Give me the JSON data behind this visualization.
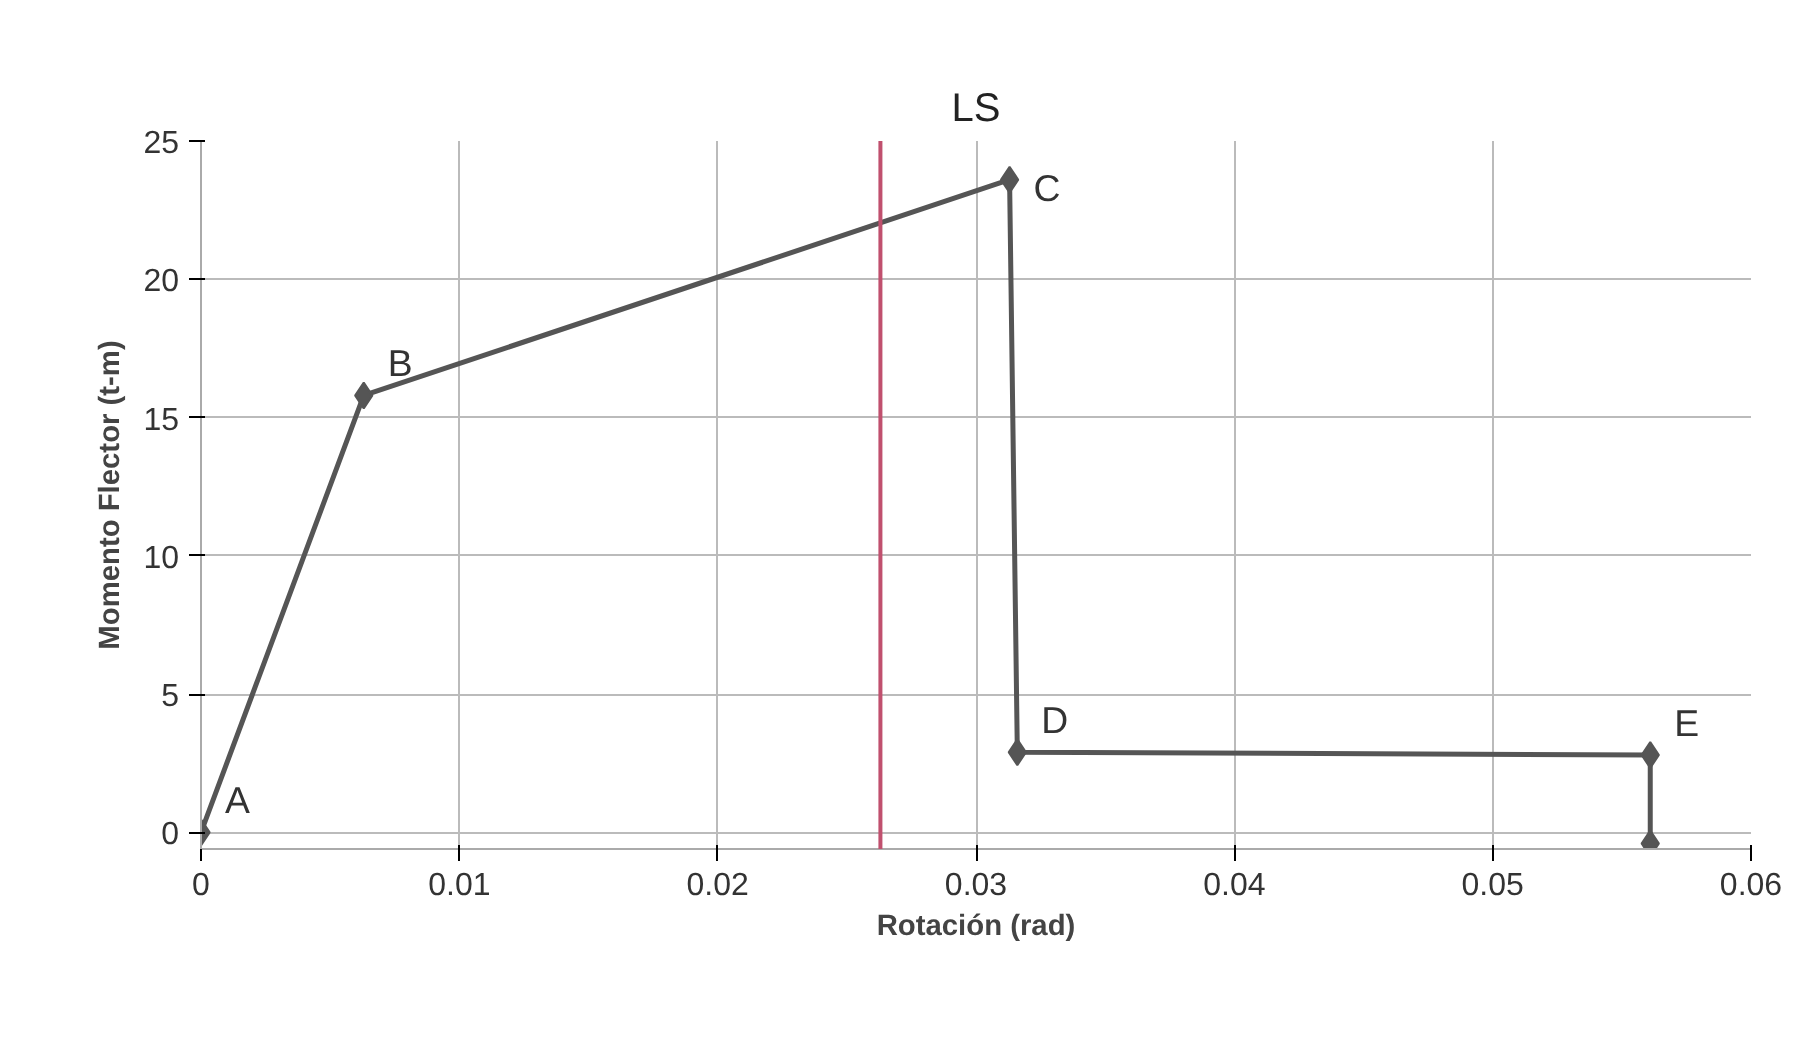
{
  "chart_data": {
    "type": "line",
    "title": "LS",
    "xlabel": "Rotación (rad)",
    "ylabel": "Momento Flector (t-m)",
    "x": [
      0,
      0.0063,
      0.0313,
      0.0316,
      0.0561,
      0.0561
    ],
    "series": [
      {
        "color": "#555555",
        "values": [
          0,
          15.8,
          23.6,
          2.9,
          2.8,
          -0.4
        ]
      }
    ],
    "marker": "diamond",
    "line_style": "solid",
    "grid": true,
    "xlim": [
      0,
      0.06
    ],
    "ylim": [
      -0.6,
      25
    ],
    "xticks": [
      0,
      0.01,
      0.02,
      0.03,
      0.04,
      0.05,
      0.06
    ],
    "yticks": [
      0,
      5,
      10,
      15,
      20,
      25
    ],
    "ref_lines": [
      {
        "axis": "x",
        "value": 0.0263,
        "color": "#c0506e"
      }
    ],
    "annotations": [
      {
        "text": "A",
        "x": 0,
        "y": 0
      },
      {
        "text": "B",
        "x": 0.0063,
        "y": 15.8
      },
      {
        "text": "C",
        "x": 0.0313,
        "y": 23.6
      },
      {
        "text": "D",
        "x": 0.0316,
        "y": 2.9
      },
      {
        "text": "E",
        "x": 0.0561,
        "y": 2.8
      }
    ]
  }
}
